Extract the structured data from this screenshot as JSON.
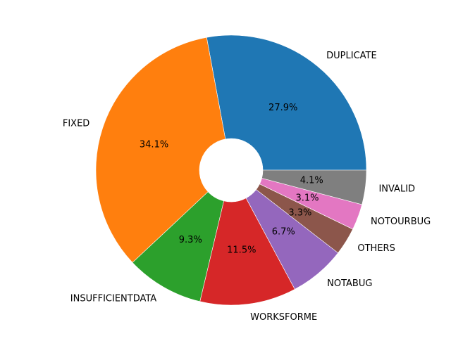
{
  "chart_data": {
    "type": "pie",
    "donut": true,
    "title": "",
    "start_angle_deg": 0,
    "direction": "counterclockwise",
    "legend": "none",
    "slices": [
      {
        "label": "DUPLICATE",
        "value": 27.9,
        "pct_label": "27.9%",
        "color": "#1f77b4"
      },
      {
        "label": "FIXED",
        "value": 34.1,
        "pct_label": "34.1%",
        "color": "#ff7f0e"
      },
      {
        "label": "INSUFFICIENTDATA",
        "value": 9.3,
        "pct_label": "9.3%",
        "color": "#2ca02c"
      },
      {
        "label": "WORKSFORME",
        "value": 11.5,
        "pct_label": "11.5%",
        "color": "#d62728"
      },
      {
        "label": "NOTABUG",
        "value": 6.7,
        "pct_label": "6.7%",
        "color": "#9467bd"
      },
      {
        "label": "OTHERS",
        "value": 3.3,
        "pct_label": "3.3%",
        "color": "#8c564b"
      },
      {
        "label": "NOTOURBUG",
        "value": 3.1,
        "pct_label": "3.1%",
        "color": "#e377c2"
      },
      {
        "label": "INVALID",
        "value": 4.1,
        "pct_label": "4.1%",
        "color": "#7f7f7f"
      }
    ]
  }
}
